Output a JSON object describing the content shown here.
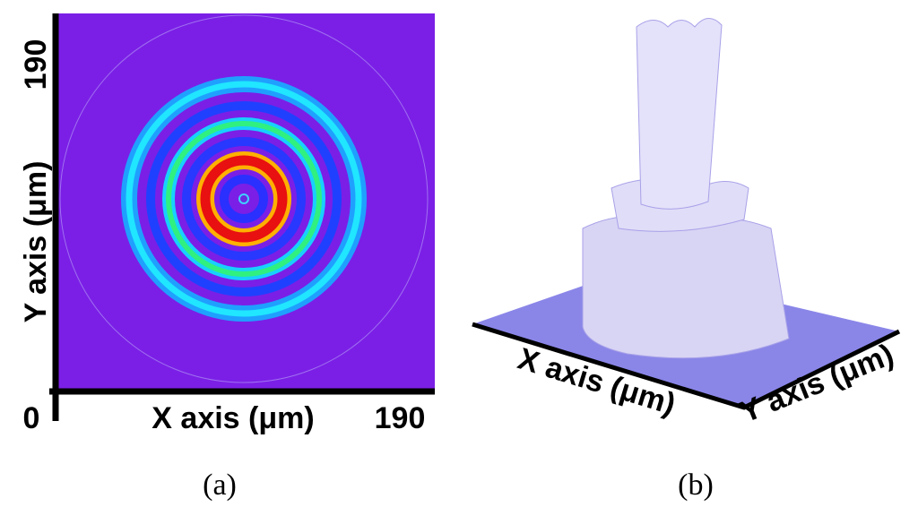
{
  "panels": [
    {
      "y_axis": {
        "max": "190",
        "label": "Y axis (μm)"
      },
      "x_axis": {
        "min": "0",
        "label": "X axis (μm)",
        "max": "190"
      },
      "caption": "(a)"
    },
    {
      "x_axis_label": "X axis (μm)",
      "y_axis_label": "Y axis (μm)",
      "caption": "(b)"
    }
  ]
}
